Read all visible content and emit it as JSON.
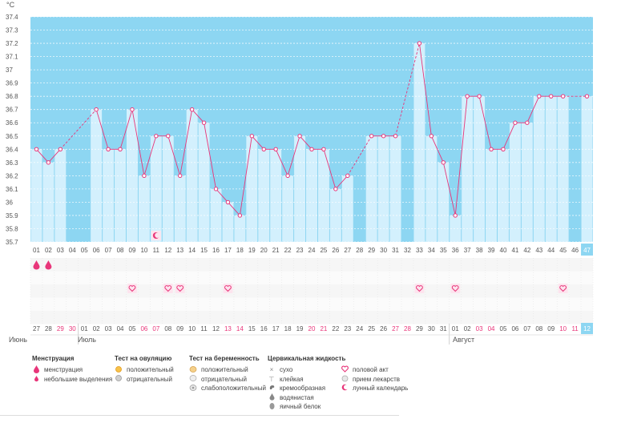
{
  "chart_data": {
    "type": "line",
    "ylabel": "°C",
    "ylim": [
      35.7,
      37.4
    ],
    "yticks": [
      "37.4",
      "37.3",
      "37.2",
      "37.1",
      "37",
      "36.9",
      "36.8",
      "36.7",
      "36.6",
      "36.5",
      "36.4",
      "36.3",
      "36.2",
      "36.1",
      "36",
      "35.9",
      "35.8",
      "35.7"
    ],
    "cycle_days": [
      "01",
      "02",
      "03",
      "04",
      "05",
      "06",
      "07",
      "08",
      "09",
      "10",
      "11",
      "12",
      "13",
      "14",
      "15",
      "16",
      "17",
      "18",
      "19",
      "20",
      "21",
      "22",
      "23",
      "24",
      "25",
      "26",
      "27",
      "28",
      "29",
      "30",
      "31",
      "32",
      "33",
      "34",
      "35",
      "36",
      "37",
      "38",
      "39",
      "40",
      "41",
      "42",
      "43",
      "44",
      "45",
      "46",
      "47"
    ],
    "dates": [
      "27",
      "28",
      "29",
      "30",
      "01",
      "02",
      "03",
      "04",
      "05",
      "06",
      "07",
      "08",
      "09",
      "10",
      "11",
      "12",
      "13",
      "14",
      "15",
      "16",
      "17",
      "18",
      "19",
      "20",
      "21",
      "22",
      "23",
      "24",
      "25",
      "26",
      "27",
      "28",
      "29",
      "30",
      "31",
      "01",
      "02",
      "03",
      "04",
      "05",
      "06",
      "07",
      "08",
      "09",
      "10",
      "11",
      "12"
    ],
    "weekend_dates": [
      false,
      false,
      true,
      true,
      false,
      false,
      false,
      false,
      false,
      true,
      true,
      false,
      false,
      false,
      false,
      false,
      true,
      true,
      false,
      false,
      false,
      false,
      false,
      true,
      true,
      false,
      false,
      false,
      false,
      false,
      true,
      true,
      false,
      false,
      false,
      false,
      false,
      true,
      true,
      false,
      false,
      false,
      false,
      false,
      true,
      true,
      false
    ],
    "temperatures": [
      36.4,
      36.3,
      36.4,
      null,
      null,
      36.7,
      36.4,
      36.4,
      36.7,
      36.2,
      36.5,
      36.5,
      36.2,
      36.7,
      36.6,
      36.1,
      36.0,
      35.9,
      36.5,
      36.4,
      36.4,
      36.2,
      36.5,
      36.4,
      36.4,
      36.1,
      36.2,
      null,
      36.5,
      36.5,
      36.5,
      null,
      37.2,
      36.5,
      36.3,
      35.9,
      36.8,
      36.8,
      36.4,
      36.4,
      36.6,
      36.6,
      36.8,
      36.8,
      36.8,
      null,
      36.8
    ],
    "current_day": 47
  },
  "markers": {
    "menstruation_days": [
      1,
      2
    ],
    "intercourse_days": [
      9,
      12,
      13,
      17,
      33,
      36,
      45
    ],
    "lunar_days": [
      11
    ]
  },
  "months": [
    "Июнь",
    "Июль",
    "Август"
  ],
  "legend": {
    "menstruation": {
      "title": "Менструация",
      "items": [
        "менструация",
        "небольшие выделения"
      ]
    },
    "ovulation": {
      "title": "Тест на овуляцию",
      "items": [
        "положительный",
        "отрицательный"
      ]
    },
    "pregnancy": {
      "title": "Тест на беременность",
      "items": [
        "положительный",
        "отрицательный",
        "слабоположительный"
      ]
    },
    "cervical": {
      "title": "Цервикальная жидкость",
      "items": [
        "сухо",
        "клейкая",
        "кремообразная",
        "водянистая",
        "яичный белок"
      ]
    },
    "other": [
      "половой акт",
      "прием лекарств",
      "лунный календарь"
    ]
  },
  "colors": {
    "background": "#8dd6f2",
    "bar": "#d3f0fd",
    "line": "#e8367a",
    "highlight": "#8dd6f2",
    "weekend": "#e8367a"
  }
}
